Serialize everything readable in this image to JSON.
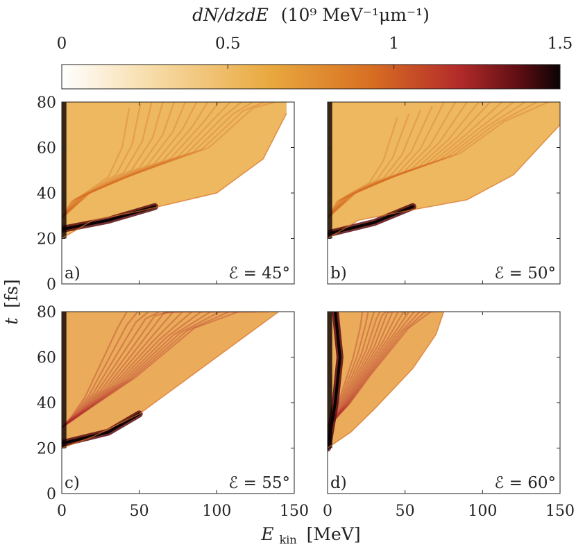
{
  "colorbar": {
    "label_main": "dN/dzdE",
    "label_units": "(10⁹ MeV⁻¹μm⁻¹)",
    "ticks": [
      0,
      0.5,
      1,
      1.5
    ],
    "tick_labels": [
      "0",
      "0.5",
      "1",
      "1.5"
    ],
    "range": [
      0,
      1.5
    ],
    "colormap": [
      {
        "v": 0.0,
        "c": "#ffffff"
      },
      {
        "v": 0.18,
        "c": "#f7dca8"
      },
      {
        "v": 0.42,
        "c": "#e9a83e"
      },
      {
        "v": 0.62,
        "c": "#d86f22"
      },
      {
        "v": 0.8,
        "c": "#b22a2a"
      },
      {
        "v": 0.92,
        "c": "#5c0d12"
      },
      {
        "v": 1.0,
        "c": "#0a0304"
      }
    ]
  },
  "chart_data": {
    "type": "heatmap",
    "xlabel": "E_kin [MeV]",
    "xlabel_main": "E",
    "xlabel_sub": "kin",
    "xlabel_unit": "[MeV]",
    "ylabel": "t [fs]",
    "ylabel_main": "t",
    "ylabel_unit": "[fs]",
    "xlim": [
      0,
      150
    ],
    "ylim": [
      0,
      80
    ],
    "xticks": [
      0,
      50,
      100,
      150
    ],
    "yticks": [
      0,
      20,
      40,
      60,
      80
    ],
    "panels": [
      {
        "tag": "a)",
        "angle_label": "ℰ = 45°",
        "onset_t": 20,
        "front": [
          [
            0,
            20
          ],
          [
            20,
            28
          ],
          [
            50,
            32
          ],
          [
            100,
            40
          ],
          [
            130,
            55
          ],
          [
            145,
            75
          ]
        ],
        "hot_band": [
          [
            0,
            24
          ],
          [
            30,
            28
          ],
          [
            60,
            34
          ]
        ],
        "diffuse_level": 0.35
      },
      {
        "tag": "b)",
        "angle_label": "ℰ = 50°",
        "onset_t": 20,
        "front": [
          [
            0,
            20
          ],
          [
            20,
            28
          ],
          [
            50,
            32
          ],
          [
            90,
            37
          ],
          [
            120,
            48
          ],
          [
            150,
            70
          ]
        ],
        "hot_band": [
          [
            0,
            22
          ],
          [
            30,
            27
          ],
          [
            55,
            34
          ]
        ],
        "diffuse_level": 0.35
      },
      {
        "tag": "c)",
        "angle_label": "ℰ = 55°",
        "onset_t": 20,
        "front": [
          [
            0,
            20
          ],
          [
            20,
            25
          ],
          [
            50,
            35
          ],
          [
            90,
            55
          ],
          [
            120,
            70
          ],
          [
            140,
            80
          ]
        ],
        "hot_band": [
          [
            0,
            22
          ],
          [
            30,
            27
          ],
          [
            50,
            35
          ]
        ],
        "diffuse_level": 0.45
      },
      {
        "tag": "d)",
        "angle_label": "ℰ = 60°",
        "onset_t": 20,
        "front": [
          [
            0,
            20
          ],
          [
            15,
            27
          ],
          [
            30,
            37
          ],
          [
            55,
            55
          ],
          [
            70,
            70
          ],
          [
            75,
            80
          ]
        ],
        "hot_band": [
          [
            0,
            20
          ],
          [
            5,
            40
          ],
          [
            8,
            60
          ],
          [
            5,
            80
          ]
        ],
        "diffuse_level": 0.5
      }
    ]
  }
}
